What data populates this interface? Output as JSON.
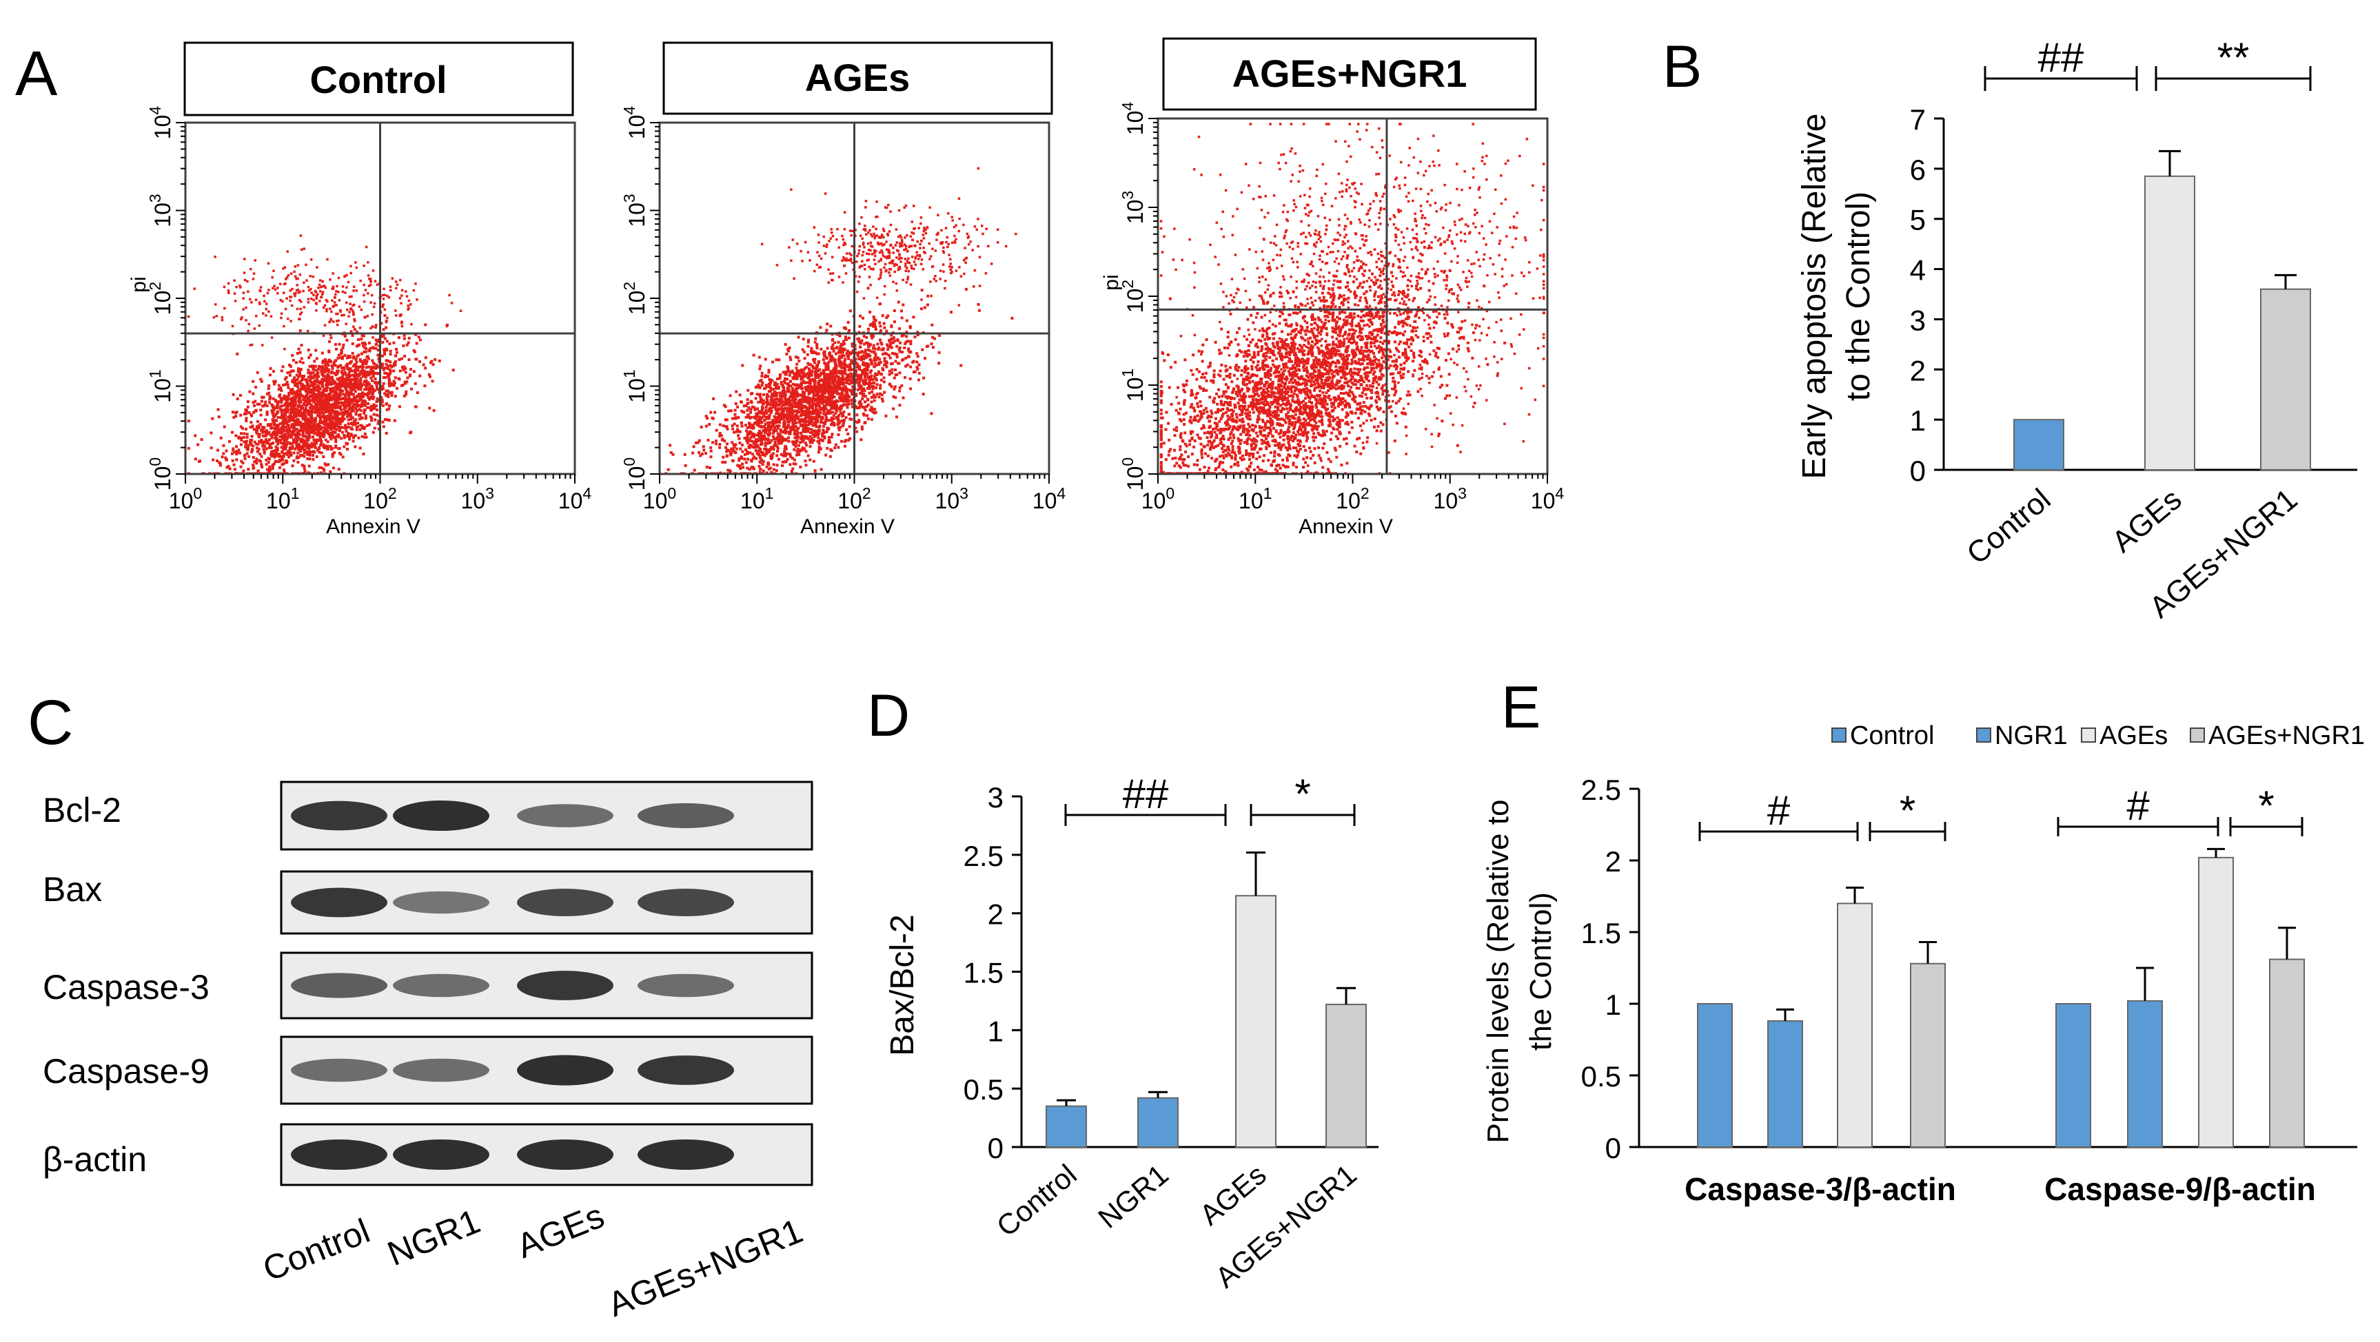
{
  "colors": {
    "dot": "#e3201b",
    "control": "#5b9bd5",
    "ngr1": "#5b9bd5",
    "ages": "#e8e8e8",
    "ages_ngr1": "#cfcdcd",
    "axis": "#000000",
    "gate": "#404040"
  },
  "panels": {
    "a": "A",
    "b": "B",
    "c": "C",
    "d": "D",
    "e": "E"
  },
  "flow": {
    "xlabel": "Annexin V",
    "ylabel": "pi",
    "tick_labels": [
      "10^0",
      "10^1",
      "10^2",
      "10^3",
      "10^4"
    ],
    "plots": [
      {
        "title": "Control",
        "show_ylabel": true,
        "gate_x": 2.0,
        "gate_y": 1.6,
        "cluster": {
          "cx": 1.35,
          "cy": 0.75,
          "sx": 0.42,
          "sy": 0.38,
          "corr": 0.6,
          "n": 2600
        },
        "scatter": [
          {
            "cx": 1.4,
            "cy": 2.0,
            "sx": 0.55,
            "sy": 0.22,
            "n": 320
          }
        ]
      },
      {
        "title": "AGEs",
        "show_ylabel": false,
        "gate_x": 2.0,
        "gate_y": 1.6,
        "cluster": {
          "cx": 1.55,
          "cy": 0.85,
          "sx": 0.48,
          "sy": 0.4,
          "corr": 0.7,
          "n": 2600
        },
        "scatter": [
          {
            "cx": 2.4,
            "cy": 2.55,
            "sx": 0.45,
            "sy": 0.22,
            "n": 420
          }
        ]
      },
      {
        "title": "AGEs+NGR1",
        "show_ylabel": true,
        "gate_x": 2.35,
        "gate_y": 1.85,
        "cluster": {
          "cx": 1.4,
          "cy": 0.95,
          "sx": 0.65,
          "sy": 0.55,
          "corr": 0.55,
          "n": 3000
        },
        "scatter": [
          {
            "cx": 2.2,
            "cy": 2.2,
            "sx": 0.85,
            "sy": 0.75,
            "n": 1200
          }
        ]
      }
    ]
  },
  "western": {
    "rows": [
      "Bcl-2",
      "Bax",
      "Caspase-3",
      "Caspase-9",
      "β-actin"
    ],
    "lanes": [
      "Control",
      "NGR1",
      "AGEs",
      "AGEs+NGR1"
    ]
  },
  "chart_data": [
    {
      "id": "B",
      "type": "bar",
      "categories": [
        "Control",
        "AGEs",
        "AGEs+NGR1"
      ],
      "values": [
        1.0,
        5.85,
        3.6
      ],
      "errors": [
        0.0,
        0.5,
        0.28
      ],
      "ylim": [
        0,
        7
      ],
      "yticks": [
        0,
        1,
        2,
        3,
        4,
        5,
        6,
        7
      ],
      "ylabel_lines": [
        "Early apoptosis (Relative",
        "to the Control)"
      ],
      "significance": [
        {
          "from": 0,
          "to": 1,
          "label": "##"
        },
        {
          "from": 1,
          "to": 2,
          "label": "**"
        }
      ]
    },
    {
      "id": "D",
      "type": "bar",
      "categories": [
        "Control",
        "NGR1",
        "AGEs",
        "AGEs+NGR1"
      ],
      "values": [
        0.35,
        0.42,
        2.15,
        1.22
      ],
      "errors": [
        0.05,
        0.05,
        0.37,
        0.14
      ],
      "ylim": [
        0,
        3
      ],
      "yticks": [
        "0",
        "0.5",
        "1",
        "1.5",
        "2",
        "2.5",
        "3"
      ],
      "ylabel": "Bax/Bcl-2",
      "significance": [
        {
          "from": 0,
          "to": 2,
          "label": "##"
        },
        {
          "from": 2,
          "to": 3,
          "label": "*"
        }
      ]
    },
    {
      "id": "E",
      "type": "bar",
      "categories": [
        "Caspase-3/β-actin",
        "Caspase-9/β-actin"
      ],
      "series": [
        {
          "name": "Control",
          "values": [
            1.0,
            1.0
          ],
          "errors": [
            0.0,
            0.0
          ]
        },
        {
          "name": "NGR1",
          "values": [
            0.88,
            1.02
          ],
          "errors": [
            0.08,
            0.23
          ]
        },
        {
          "name": "AGEs",
          "values": [
            1.7,
            2.02
          ],
          "errors": [
            0.11,
            0.06
          ]
        },
        {
          "name": "AGEs+NGR1",
          "values": [
            1.28,
            1.31
          ],
          "errors": [
            0.15,
            0.22
          ]
        }
      ],
      "legend": [
        "Control",
        "NGR1",
        "AGEs",
        "AGEs+NGR1"
      ],
      "ylim": [
        0,
        2.5
      ],
      "yticks": [
        "0",
        "0.5",
        "1",
        "1.5",
        "2",
        "2.5"
      ],
      "ylabel_lines": [
        "Protein levels (Relative to",
        "the Control)"
      ],
      "significance": [
        {
          "group": 0,
          "from": 0,
          "to": 2,
          "label": "#"
        },
        {
          "group": 0,
          "from": 2,
          "to": 3,
          "label": "*"
        },
        {
          "group": 1,
          "from": 0,
          "to": 2,
          "label": "#"
        },
        {
          "group": 1,
          "from": 2,
          "to": 3,
          "label": "*"
        }
      ]
    }
  ]
}
